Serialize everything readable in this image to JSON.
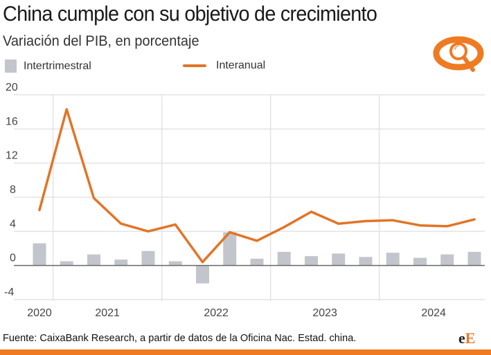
{
  "header": {
    "title": "China cumple con su objetivo de crecimiento",
    "subtitle": "Variación del PIB, en porcentaje"
  },
  "legend": {
    "bar_label": "Intertrimestral",
    "line_label": "Interanual"
  },
  "footer": {
    "source": "Fuente: CaixaBank Research, a partir de datos de la Oficina Nac. Estad. china.",
    "brand_part1": "e",
    "brand_part2": "E"
  },
  "logo_icon": "magnifier-eye-icon",
  "colors": {
    "line": "#e27426",
    "bar": "#c2c6cc",
    "accent": "#ef7a22",
    "grid": "#e3e3e3",
    "zero_line": "#666666"
  },
  "chart_data": {
    "type": "bar+line",
    "title": "China cumple con su objetivo de crecimiento",
    "subtitle": "Variación del PIB, en porcentaje",
    "xlabel": "",
    "ylabel": "",
    "ylim": [
      -4,
      20
    ],
    "yticks": [
      20,
      16,
      12,
      8,
      4,
      0,
      -4
    ],
    "grid": true,
    "legend_position": "top-left",
    "categories": [
      "2020 T4",
      "2021 T1",
      "2021 T2",
      "2021 T3",
      "2021 T4",
      "2022 T1",
      "2022 T2",
      "2022 T3",
      "2022 T4",
      "2023 T1",
      "2023 T2",
      "2023 T3",
      "2023 T4",
      "2024 T1",
      "2024 T2",
      "2024 T3",
      "2024 T4"
    ],
    "xtick_labels": [
      {
        "label": "2020",
        "index": 0
      },
      {
        "label": "2021",
        "index": 2.5
      },
      {
        "label": "2022",
        "index": 6.5
      },
      {
        "label": "2023",
        "index": 10.5
      },
      {
        "label": "2024",
        "index": 14.5
      }
    ],
    "year_separators_after_index": [
      0.5,
      4.5,
      8.5,
      12.5
    ],
    "series": [
      {
        "name": "Intertrimestral",
        "type": "bar",
        "values": [
          2.6,
          0.5,
          1.3,
          0.7,
          1.7,
          0.5,
          -2.1,
          3.9,
          0.8,
          1.6,
          1.1,
          1.4,
          1.0,
          1.5,
          0.9,
          1.3,
          1.6
        ]
      },
      {
        "name": "Interanual",
        "type": "line",
        "values": [
          6.5,
          18.3,
          7.9,
          4.9,
          4.0,
          4.8,
          0.4,
          3.9,
          2.9,
          4.5,
          6.3,
          4.9,
          5.2,
          5.3,
          4.7,
          4.6,
          5.4
        ]
      }
    ]
  }
}
